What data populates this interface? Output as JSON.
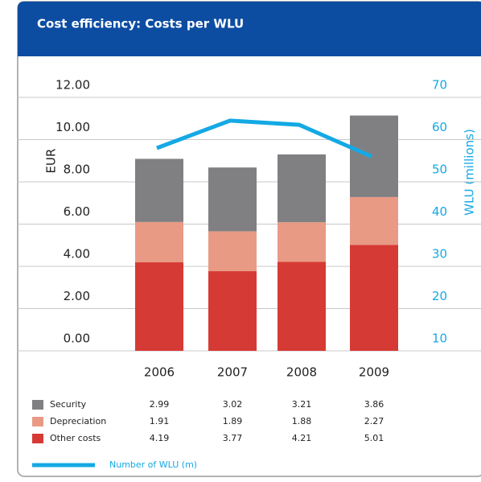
{
  "chart_data": {
    "type": "bar",
    "stacked": true,
    "title": "Cost efficiency: Costs per WLU",
    "ylabel": "EUR",
    "y2label": "WLU (millions)",
    "categories": [
      "2006",
      "2007",
      "2008",
      "2009"
    ],
    "series": [
      {
        "name": "Other costs",
        "color": "#d63a34",
        "values": [
          4.19,
          3.77,
          4.21,
          5.01
        ]
      },
      {
        "name": "Depreciation",
        "color": "#e89a85",
        "values": [
          1.91,
          1.89,
          1.88,
          2.27
        ]
      },
      {
        "name": "Security",
        "color": "#808083",
        "values": [
          2.99,
          3.02,
          3.21,
          3.86
        ]
      },
      {
        "name": "Number of WLU (m)",
        "color": "#14a9e4",
        "type": "line",
        "axis": "y2",
        "values": [
          58,
          64.5,
          63.5,
          56
        ]
      }
    ],
    "ylim": [
      0,
      12
    ],
    "yticks": [
      {
        "value": 0,
        "label": "0.00"
      },
      {
        "value": 2,
        "label": "2.00"
      },
      {
        "value": 4,
        "label": "4.00"
      },
      {
        "value": 6,
        "label": "6.00"
      },
      {
        "value": 8,
        "label": "8.00"
      },
      {
        "value": 10,
        "label": "10.00"
      },
      {
        "value": 12,
        "label": "12.00"
      }
    ],
    "y2lim": [
      10,
      70
    ],
    "y2ticks": [
      10,
      20,
      30,
      40,
      50,
      60,
      70
    ],
    "grid": true
  }
}
